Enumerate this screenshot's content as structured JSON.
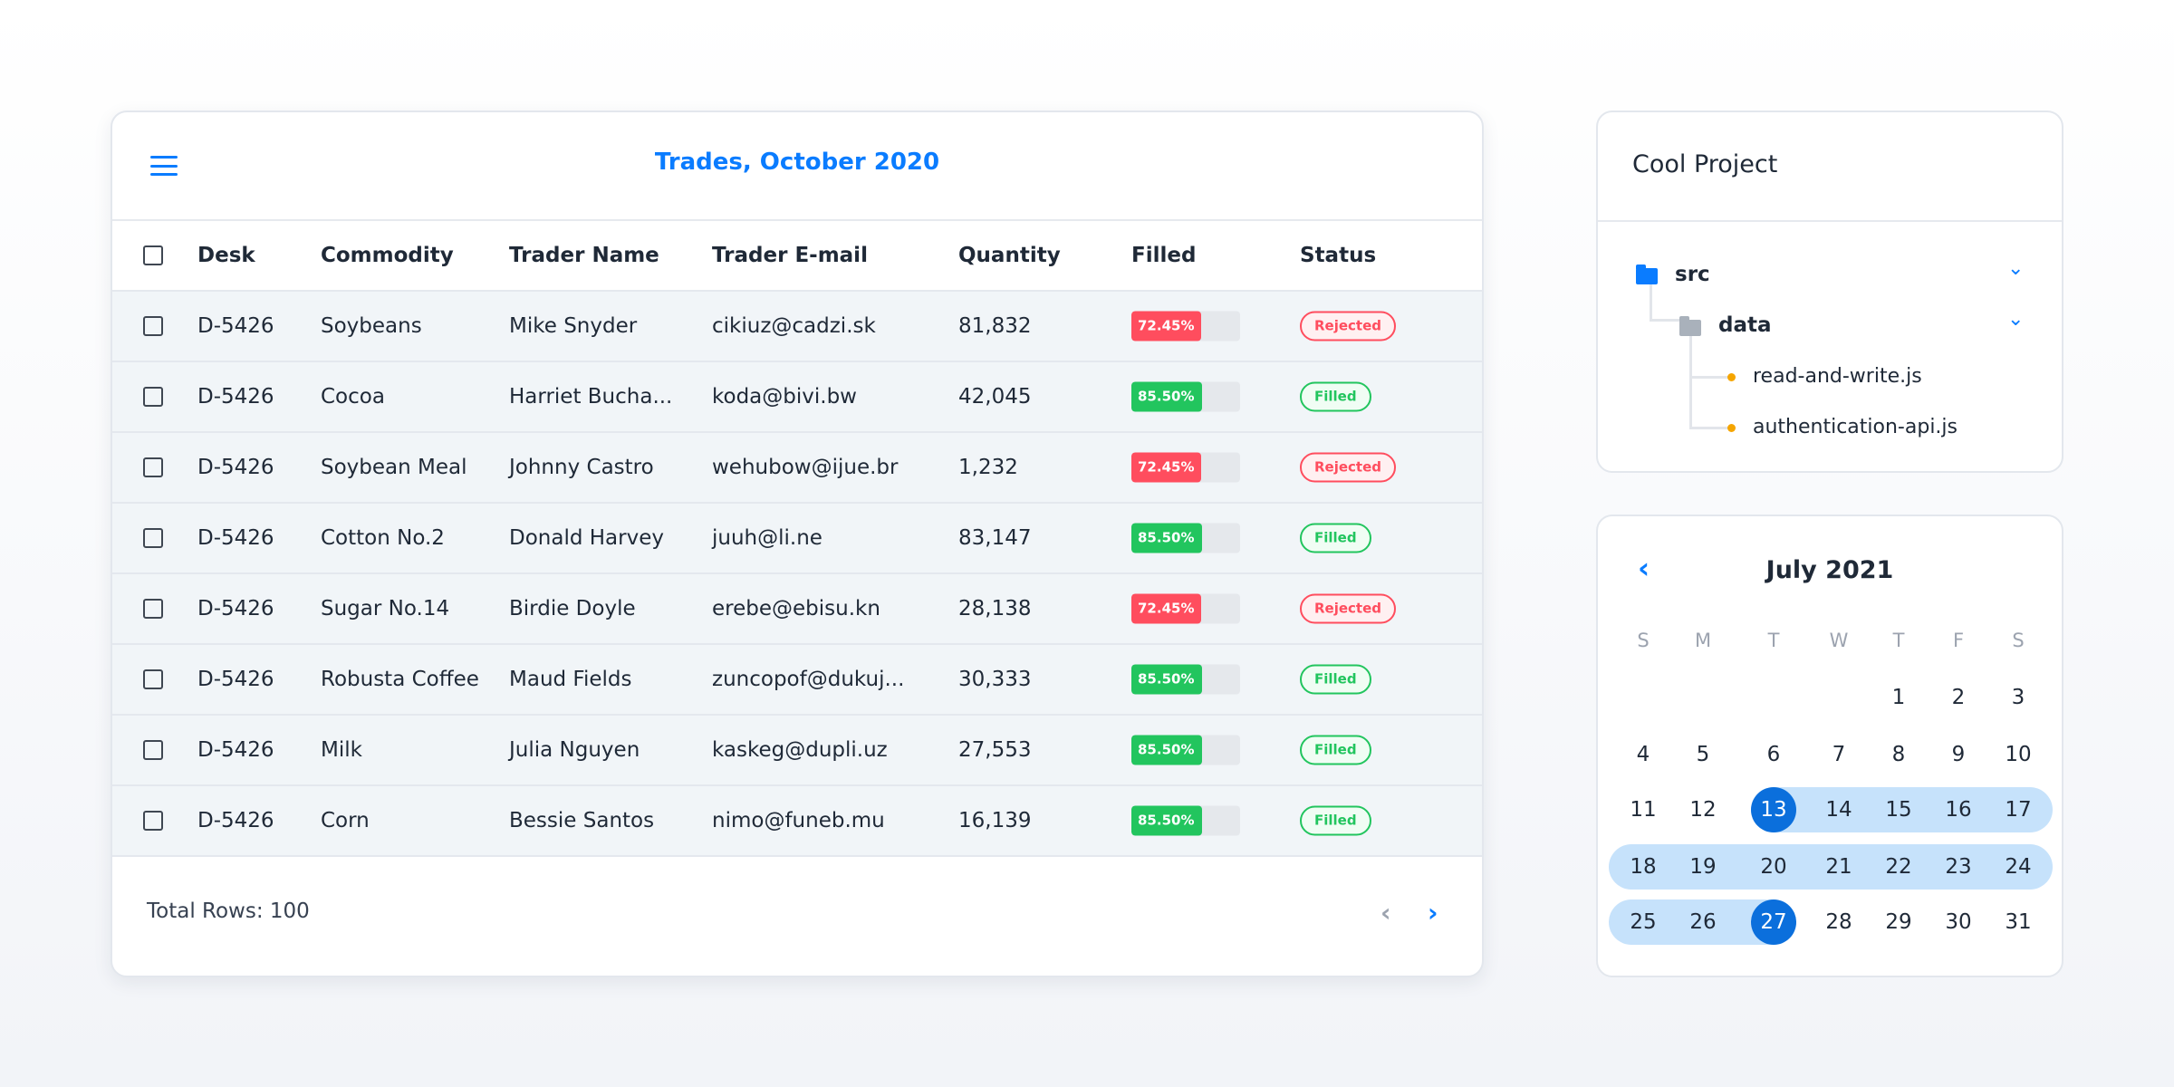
{
  "trades": {
    "title": "Trades, October 2020",
    "columns": [
      "Desk",
      "Commodity",
      "Trader Name",
      "Trader E-mail",
      "Quantity",
      "Filled",
      "Status"
    ],
    "rows": [
      {
        "desk": "D-5426",
        "commodity": "Soybeans",
        "trader": "Mike Snyder",
        "email": "cikiuz@cadzi.sk",
        "quantity": "81,832",
        "filled": "72.45%",
        "filled_pct": 72.45,
        "status": "Rejected"
      },
      {
        "desk": "D-5426",
        "commodity": "Cocoa",
        "trader": "Harriet Bucha...",
        "email": "koda@bivi.bw",
        "quantity": "42,045",
        "filled": "85.50%",
        "filled_pct": 85.5,
        "status": "Filled"
      },
      {
        "desk": "D-5426",
        "commodity": "Soybean Meal",
        "trader": "Johnny Castro",
        "email": "wehubow@ijue.br",
        "quantity": "1,232",
        "filled": "72.45%",
        "filled_pct": 72.45,
        "status": "Rejected"
      },
      {
        "desk": "D-5426",
        "commodity": "Cotton No.2",
        "trader": "Donald Harvey",
        "email": "juuh@li.ne",
        "quantity": "83,147",
        "filled": "85.50%",
        "filled_pct": 85.5,
        "status": "Filled"
      },
      {
        "desk": "D-5426",
        "commodity": "Sugar No.14",
        "trader": "Birdie Doyle",
        "email": "erebe@ebisu.kn",
        "quantity": "28,138",
        "filled": "72.45%",
        "filled_pct": 72.45,
        "status": "Rejected"
      },
      {
        "desk": "D-5426",
        "commodity": "Robusta Coffee",
        "trader": "Maud Fields",
        "email": "zuncopof@dukuj...",
        "quantity": "30,333",
        "filled": "85.50%",
        "filled_pct": 85.5,
        "status": "Filled"
      },
      {
        "desk": "D-5426",
        "commodity": "Milk",
        "trader": "Julia Nguyen",
        "email": "kaskeg@dupli.uz",
        "quantity": "27,553",
        "filled": "85.50%",
        "filled_pct": 85.5,
        "status": "Filled"
      },
      {
        "desk": "D-5426",
        "commodity": "Corn",
        "trader": "Bessie Santos",
        "email": "nimo@funeb.mu",
        "quantity": "16,139",
        "filled": "85.50%",
        "filled_pct": 85.5,
        "status": "Filled"
      }
    ],
    "total_rows": "Total Rows: 100",
    "prev_icon": "‹",
    "next_icon": "›"
  },
  "colors": {
    "accent": "#0a7cff",
    "rejected": "#ff4d5e",
    "filled": "#22c55e",
    "selected": "#0b6fdc",
    "range": "#c6e2fb"
  },
  "project": {
    "title": "Cool Project",
    "tree": {
      "folder": "src",
      "subfolder": "data",
      "files": [
        "read-and-write.js",
        "authentication-api.js"
      ]
    }
  },
  "calendar": {
    "title": "July 2021",
    "prev_icon": "‹",
    "weekdays": [
      "S",
      "M",
      "T",
      "W",
      "T",
      "F",
      "S"
    ],
    "weeks": [
      [
        null,
        null,
        null,
        null,
        1,
        2,
        3
      ],
      [
        4,
        5,
        6,
        7,
        8,
        9,
        10
      ],
      [
        11,
        12,
        13,
        14,
        15,
        16,
        17
      ],
      [
        18,
        19,
        20,
        21,
        22,
        23,
        24
      ],
      [
        25,
        26,
        27,
        28,
        29,
        30,
        31
      ]
    ],
    "range_start": 13,
    "range_end": 27
  }
}
